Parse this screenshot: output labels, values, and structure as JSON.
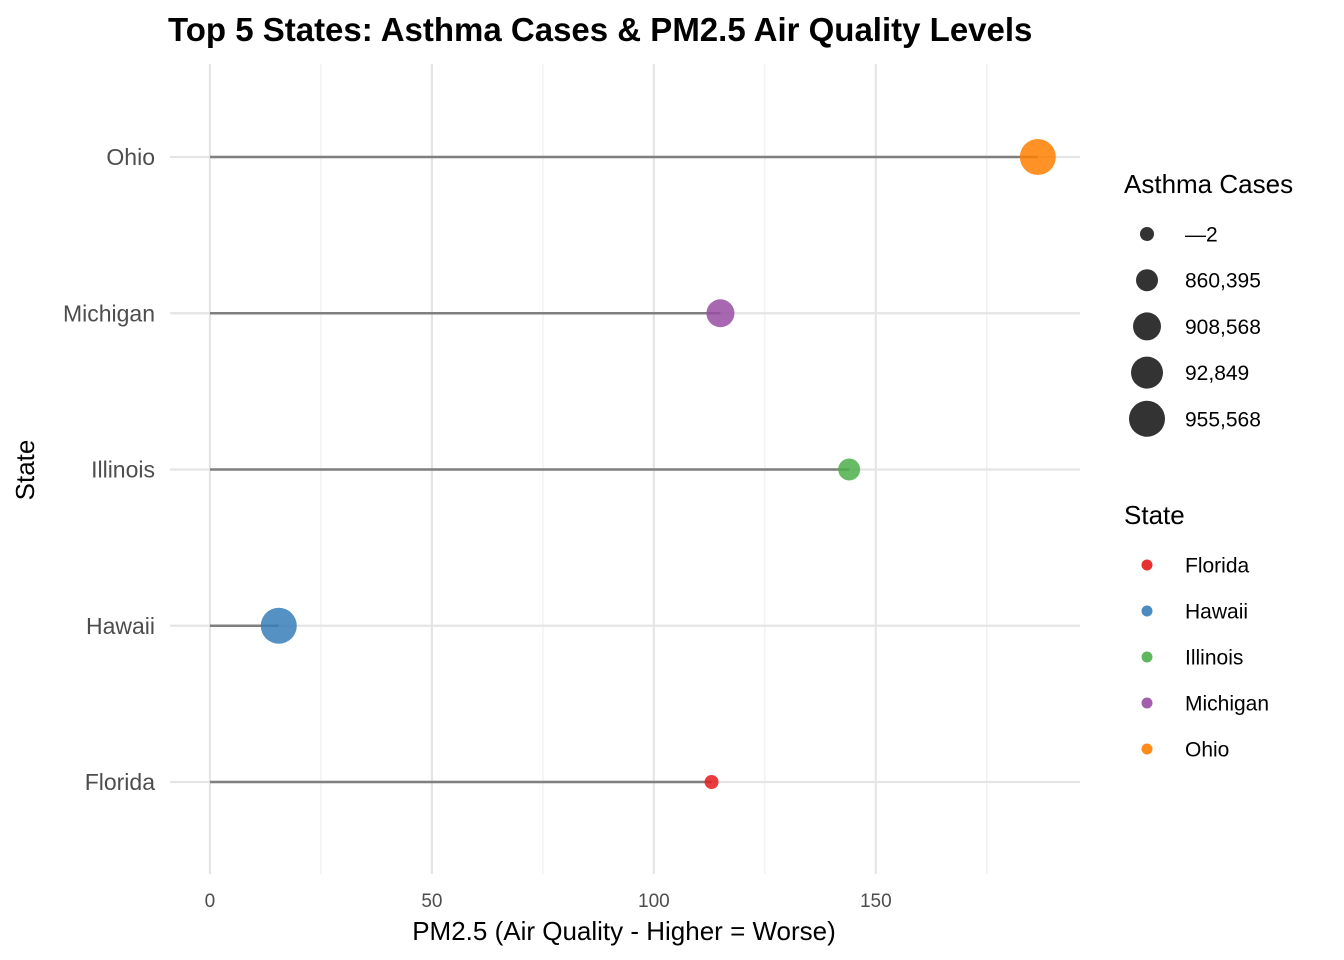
{
  "chart_data": {
    "type": "lollipop",
    "title": "Top 5 States: Asthma Cases & PM2.5 Air Quality Levels",
    "xlabel": "PM2.5 (Air Quality - Higher = Worse)",
    "ylabel": "State",
    "xlim": [
      -9,
      196
    ],
    "x_ticks": [
      0,
      50,
      100,
      150
    ],
    "x_minor_ticks": [
      25,
      75,
      125,
      175
    ],
    "categories": [
      "Florida",
      "Hawaii",
      "Illinois",
      "Michigan",
      "Ohio"
    ],
    "points": [
      {
        "state": "Florida",
        "pm25": 113,
        "asthma_label": "—2",
        "size_rank": 1,
        "color": "#e41a1c"
      },
      {
        "state": "Hawaii",
        "pm25": 15.5,
        "asthma_label": "955,568",
        "size_rank": 5,
        "color": "#377eb8"
      },
      {
        "state": "Illinois",
        "pm25": 144,
        "asthma_label": "860,395",
        "size_rank": 2,
        "color": "#4daf4a"
      },
      {
        "state": "Michigan",
        "pm25": 115,
        "asthma_label": "908,568",
        "size_rank": 3,
        "color": "#984ea3"
      },
      {
        "state": "Ohio",
        "pm25": 186.5,
        "asthma_label": "955,568",
        "size_rank": 5,
        "color": "#ff7f00"
      }
    ],
    "legend_size": {
      "title": "Asthma Cases",
      "items": [
        {
          "label": "—2",
          "size_rank": 1
        },
        {
          "label": "860,395",
          "size_rank": 2
        },
        {
          "label": "908,568",
          "size_rank": 3
        },
        {
          "label": "92,849",
          "size_rank": 4
        },
        {
          "label": "955,568",
          "size_rank": 5
        }
      ]
    },
    "legend_color": {
      "title": "State",
      "items": [
        {
          "label": "Florida",
          "color": "#e41a1c"
        },
        {
          "label": "Hawaii",
          "color": "#377eb8"
        },
        {
          "label": "Illinois",
          "color": "#4daf4a"
        },
        {
          "label": "Michigan",
          "color": "#984ea3"
        },
        {
          "label": "Ohio",
          "color": "#ff7f00"
        }
      ]
    },
    "legend_placement": "right",
    "grid": true
  }
}
